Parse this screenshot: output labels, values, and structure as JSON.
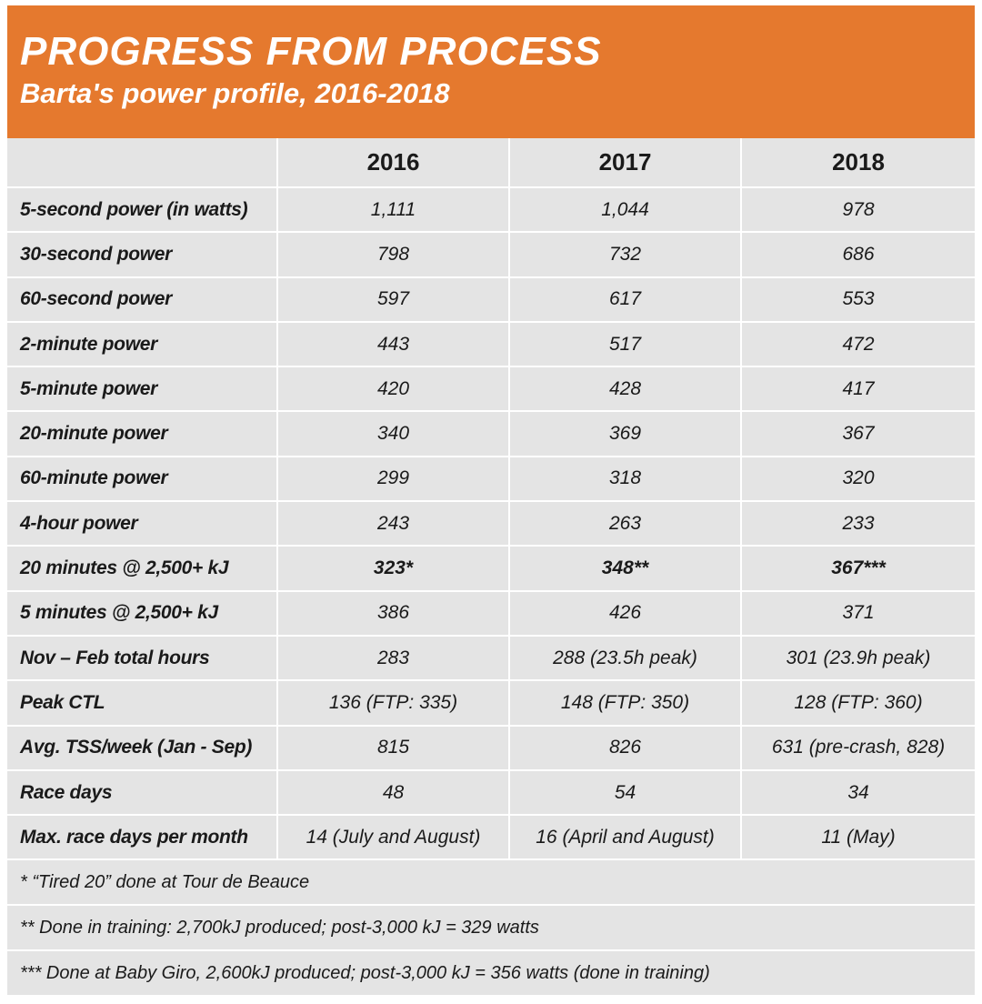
{
  "header": {
    "title": "PROGRESS FROM PROCESS",
    "subtitle": "Barta's power profile, 2016-2018"
  },
  "table": {
    "columns": [
      "2016",
      "2017",
      "2018"
    ],
    "rows": [
      [
        "5-second power (in watts)",
        "1,111",
        "1,044",
        "978"
      ],
      [
        "30-second power",
        "798",
        "732",
        "686"
      ],
      [
        "60-second power",
        "597",
        "617",
        "553"
      ],
      [
        "2-minute power",
        "443",
        "517",
        "472"
      ],
      [
        "5-minute power",
        "420",
        "428",
        "417"
      ],
      [
        "20-minute power",
        "340",
        "369",
        "367"
      ],
      [
        "60-minute power",
        "299",
        "318",
        "320"
      ],
      [
        "4-hour power",
        "243",
        "263",
        "233"
      ],
      [
        "20 minutes @ 2,500+ kJ",
        "323*",
        "348**",
        "367***"
      ],
      [
        "5 minutes @ 2,500+ kJ",
        "386",
        "426",
        "371"
      ],
      [
        "Nov – Feb total hours",
        "283",
        "288 (23.5h peak)",
        "301 (23.9h peak)"
      ],
      [
        "Peak CTL",
        "136 (FTP: 335)",
        "148 (FTP: 350)",
        "128 (FTP: 360)"
      ],
      [
        "Avg. TSS/week (Jan - Sep)",
        "815",
        "826",
        "631 (pre-crash, 828)"
      ],
      [
        "Race days",
        "48",
        "54",
        "34"
      ],
      [
        "Max. race days per month",
        "14 (July and August)",
        "16 (April and August)",
        "11 (May)"
      ]
    ]
  },
  "footnotes": [
    "* “Tired 20” done at Tour de Beauce",
    "** Done in training: 2,700kJ produced; post-3,000 kJ = 329 watts",
    "*** Done at Baby Giro, 2,600kJ produced; post-3,000 kJ = 356 watts (done in training)"
  ]
}
